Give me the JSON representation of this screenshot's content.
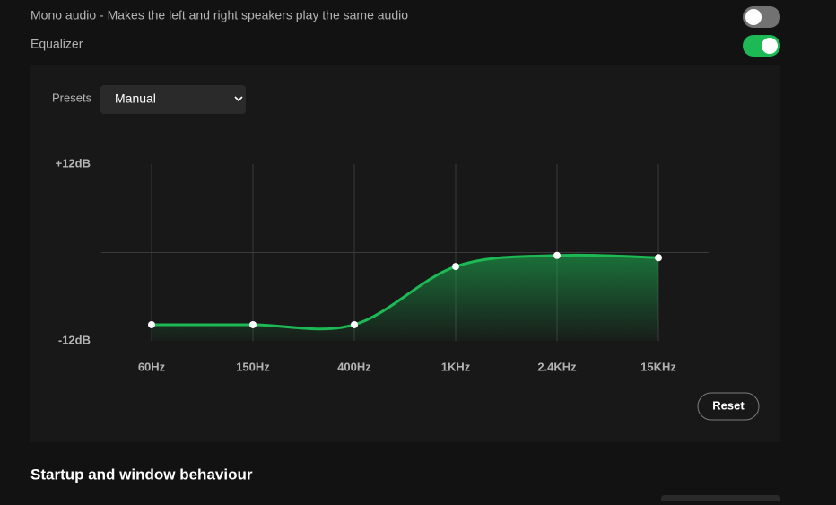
{
  "settings": {
    "mono_audio": {
      "label": "Mono audio - Makes the left and right speakers play the same audio",
      "enabled": false
    },
    "equalizer": {
      "label": "Equalizer",
      "enabled": true
    },
    "presets_label": "Presets",
    "preset": "Manual",
    "reset": "Reset",
    "next_section": "Startup and window behaviour"
  },
  "chart_data": {
    "type": "line",
    "categories": [
      "60Hz",
      "150Hz",
      "400Hz",
      "1KHz",
      "2.4KHz",
      "15KHz"
    ],
    "values": [
      -9.8,
      -9.8,
      -9.8,
      -1.9,
      -0.4,
      -0.7
    ],
    "color": "#1db954",
    "ylim": [
      -12,
      12
    ],
    "yticks": [
      {
        "value": 12,
        "label": "+12dB"
      },
      {
        "value": -12,
        "label": "-12dB"
      }
    ]
  }
}
